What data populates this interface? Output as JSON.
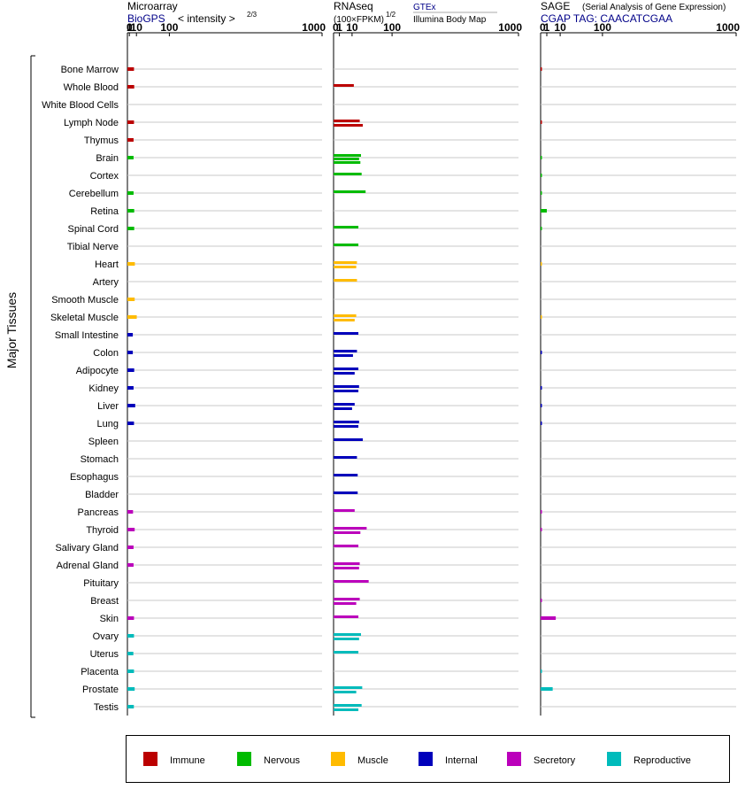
{
  "panels": [
    {
      "id": "microarray",
      "title": "Microarray",
      "subtitle": "BioGPS",
      "scale_label": "< intensity >",
      "scale_exp": "2/3",
      "source_note": ""
    },
    {
      "id": "rnaseq",
      "title": "RNAseq",
      "subtitle": "(100×FPKM)",
      "scale_label": "",
      "scale_exp": "1/2",
      "source_note": "GTEx",
      "source_note2": "Illumina Body Map"
    },
    {
      "id": "sage",
      "title": "SAGE",
      "subtitle": "CGAP TAG: CAACATCGAA",
      "scale_label": "(Serial Analysis of Gene Expression)",
      "scale_exp": "",
      "source_note": ""
    }
  ],
  "y_axis_label": "Major Tissues",
  "legend": [
    {
      "name": "Immune",
      "color": "#bb0000"
    },
    {
      "name": "Nervous",
      "color": "#00bb00"
    },
    {
      "name": "Muscle",
      "color": "#ffbb00"
    },
    {
      "name": "Internal",
      "color": "#0000bb"
    },
    {
      "name": "Secretory",
      "color": "#bb00bb"
    },
    {
      "name": "Reproductive",
      "color": "#00bbbb"
    }
  ],
  "chart_data": {
    "type": "bar",
    "orientation": "horizontal",
    "x_ticks": [
      "0",
      "1",
      "10",
      "100",
      "1000"
    ],
    "xlim": [
      0,
      1000
    ],
    "categories": [
      "Bone Marrow",
      "Whole Blood",
      "White Blood Cells",
      "Lymph Node",
      "Thymus",
      "Brain",
      "Cortex",
      "Cerebellum",
      "Retina",
      "Spinal Cord",
      "Tibial Nerve",
      "Heart",
      "Artery",
      "Smooth Muscle",
      "Skeletal Muscle",
      "Small Intestine",
      "Colon",
      "Adipocyte",
      "Kidney",
      "Liver",
      "Lung",
      "Spleen",
      "Stomach",
      "Esophagus",
      "Bladder",
      "Pancreas",
      "Thyroid",
      "Salivary Gland",
      "Adrenal Gland",
      "Pituitary",
      "Breast",
      "Skin",
      "Ovary",
      "Uterus",
      "Placenta",
      "Prostate",
      "Testis"
    ],
    "groups": [
      "Immune",
      "Immune",
      "Immune",
      "Immune",
      "Immune",
      "Nervous",
      "Nervous",
      "Nervous",
      "Nervous",
      "Nervous",
      "Nervous",
      "Muscle",
      "Muscle",
      "Muscle",
      "Muscle",
      "Internal",
      "Internal",
      "Internal",
      "Internal",
      "Internal",
      "Internal",
      "Internal",
      "Internal",
      "Internal",
      "Internal",
      "Secretory",
      "Secretory",
      "Secretory",
      "Secretory",
      "Secretory",
      "Secretory",
      "Secretory",
      "Reproductive",
      "Reproductive",
      "Reproductive",
      "Reproductive",
      "Reproductive"
    ],
    "series": [
      {
        "name": "Microarray",
        "values": [
          [
            6.2
          ],
          [
            6.5
          ],
          [],
          [
            6.2
          ],
          [
            5.6
          ],
          [
            5.6
          ],
          [],
          [
            5.6
          ],
          [
            6.5
          ],
          [
            6.5
          ],
          [],
          [
            7.5
          ],
          [],
          [
            7.2
          ],
          [
            10.5
          ],
          [
            4.6
          ],
          [
            4.6
          ],
          [
            6.5
          ],
          [
            5.6
          ],
          [
            8.0
          ],
          [
            6.2
          ],
          [],
          [],
          [],
          [],
          [
            4.9
          ],
          [
            7.2
          ],
          [
            5.6
          ],
          [
            5.6
          ],
          [],
          [],
          [
            6.2
          ],
          [
            6.2
          ],
          [
            5.3
          ],
          [
            6.2
          ],
          [
            7.2
          ],
          [
            6.0
          ]
        ]
      },
      {
        "name": "RNAseq",
        "values": [
          [],
          [
            12
          ],
          [],
          [
            20,
            25
          ],
          [],
          [
            22,
            19,
            21
          ],
          [
            23
          ],
          [
            30
          ],
          [],
          [
            18
          ],
          [
            18
          ],
          [
            16,
            15
          ],
          [
            16
          ],
          [],
          [
            15,
            13
          ],
          [
            18
          ],
          [
            16,
            11
          ],
          [
            18,
            13
          ],
          [
            19,
            18
          ],
          [
            13,
            10
          ],
          [
            19,
            18
          ],
          [
            25
          ],
          [
            16
          ],
          [
            17
          ],
          [
            17
          ],
          [
            13
          ],
          [
            32,
            21
          ],
          [
            18
          ],
          [
            20,
            19
          ],
          [
            36
          ],
          [
            20,
            15
          ],
          [
            18
          ],
          [
            22,
            19
          ],
          [
            18
          ],
          [],
          [
            24,
            15
          ],
          [
            23,
            18
          ]
        ]
      },
      {
        "name": "SAGE",
        "values": [
          [
            0.03
          ],
          [],
          [],
          [
            0.03
          ],
          [],
          [
            0.02
          ],
          [
            0.02
          ],
          [
            0.02
          ],
          [
            1.0
          ],
          [
            0.02
          ],
          [],
          [
            0.01
          ],
          [],
          [],
          [
            0.01
          ],
          [],
          [
            0.03
          ],
          [],
          [
            0.03
          ],
          [
            0.03
          ],
          [
            0.03
          ],
          [],
          [],
          [],
          [],
          [
            0.03
          ],
          [
            0.03
          ],
          [],
          [],
          [],
          [
            0.03
          ],
          [
            6
          ],
          [],
          [],
          [
            0.02
          ],
          [
            3.8
          ],
          []
        ]
      }
    ]
  }
}
